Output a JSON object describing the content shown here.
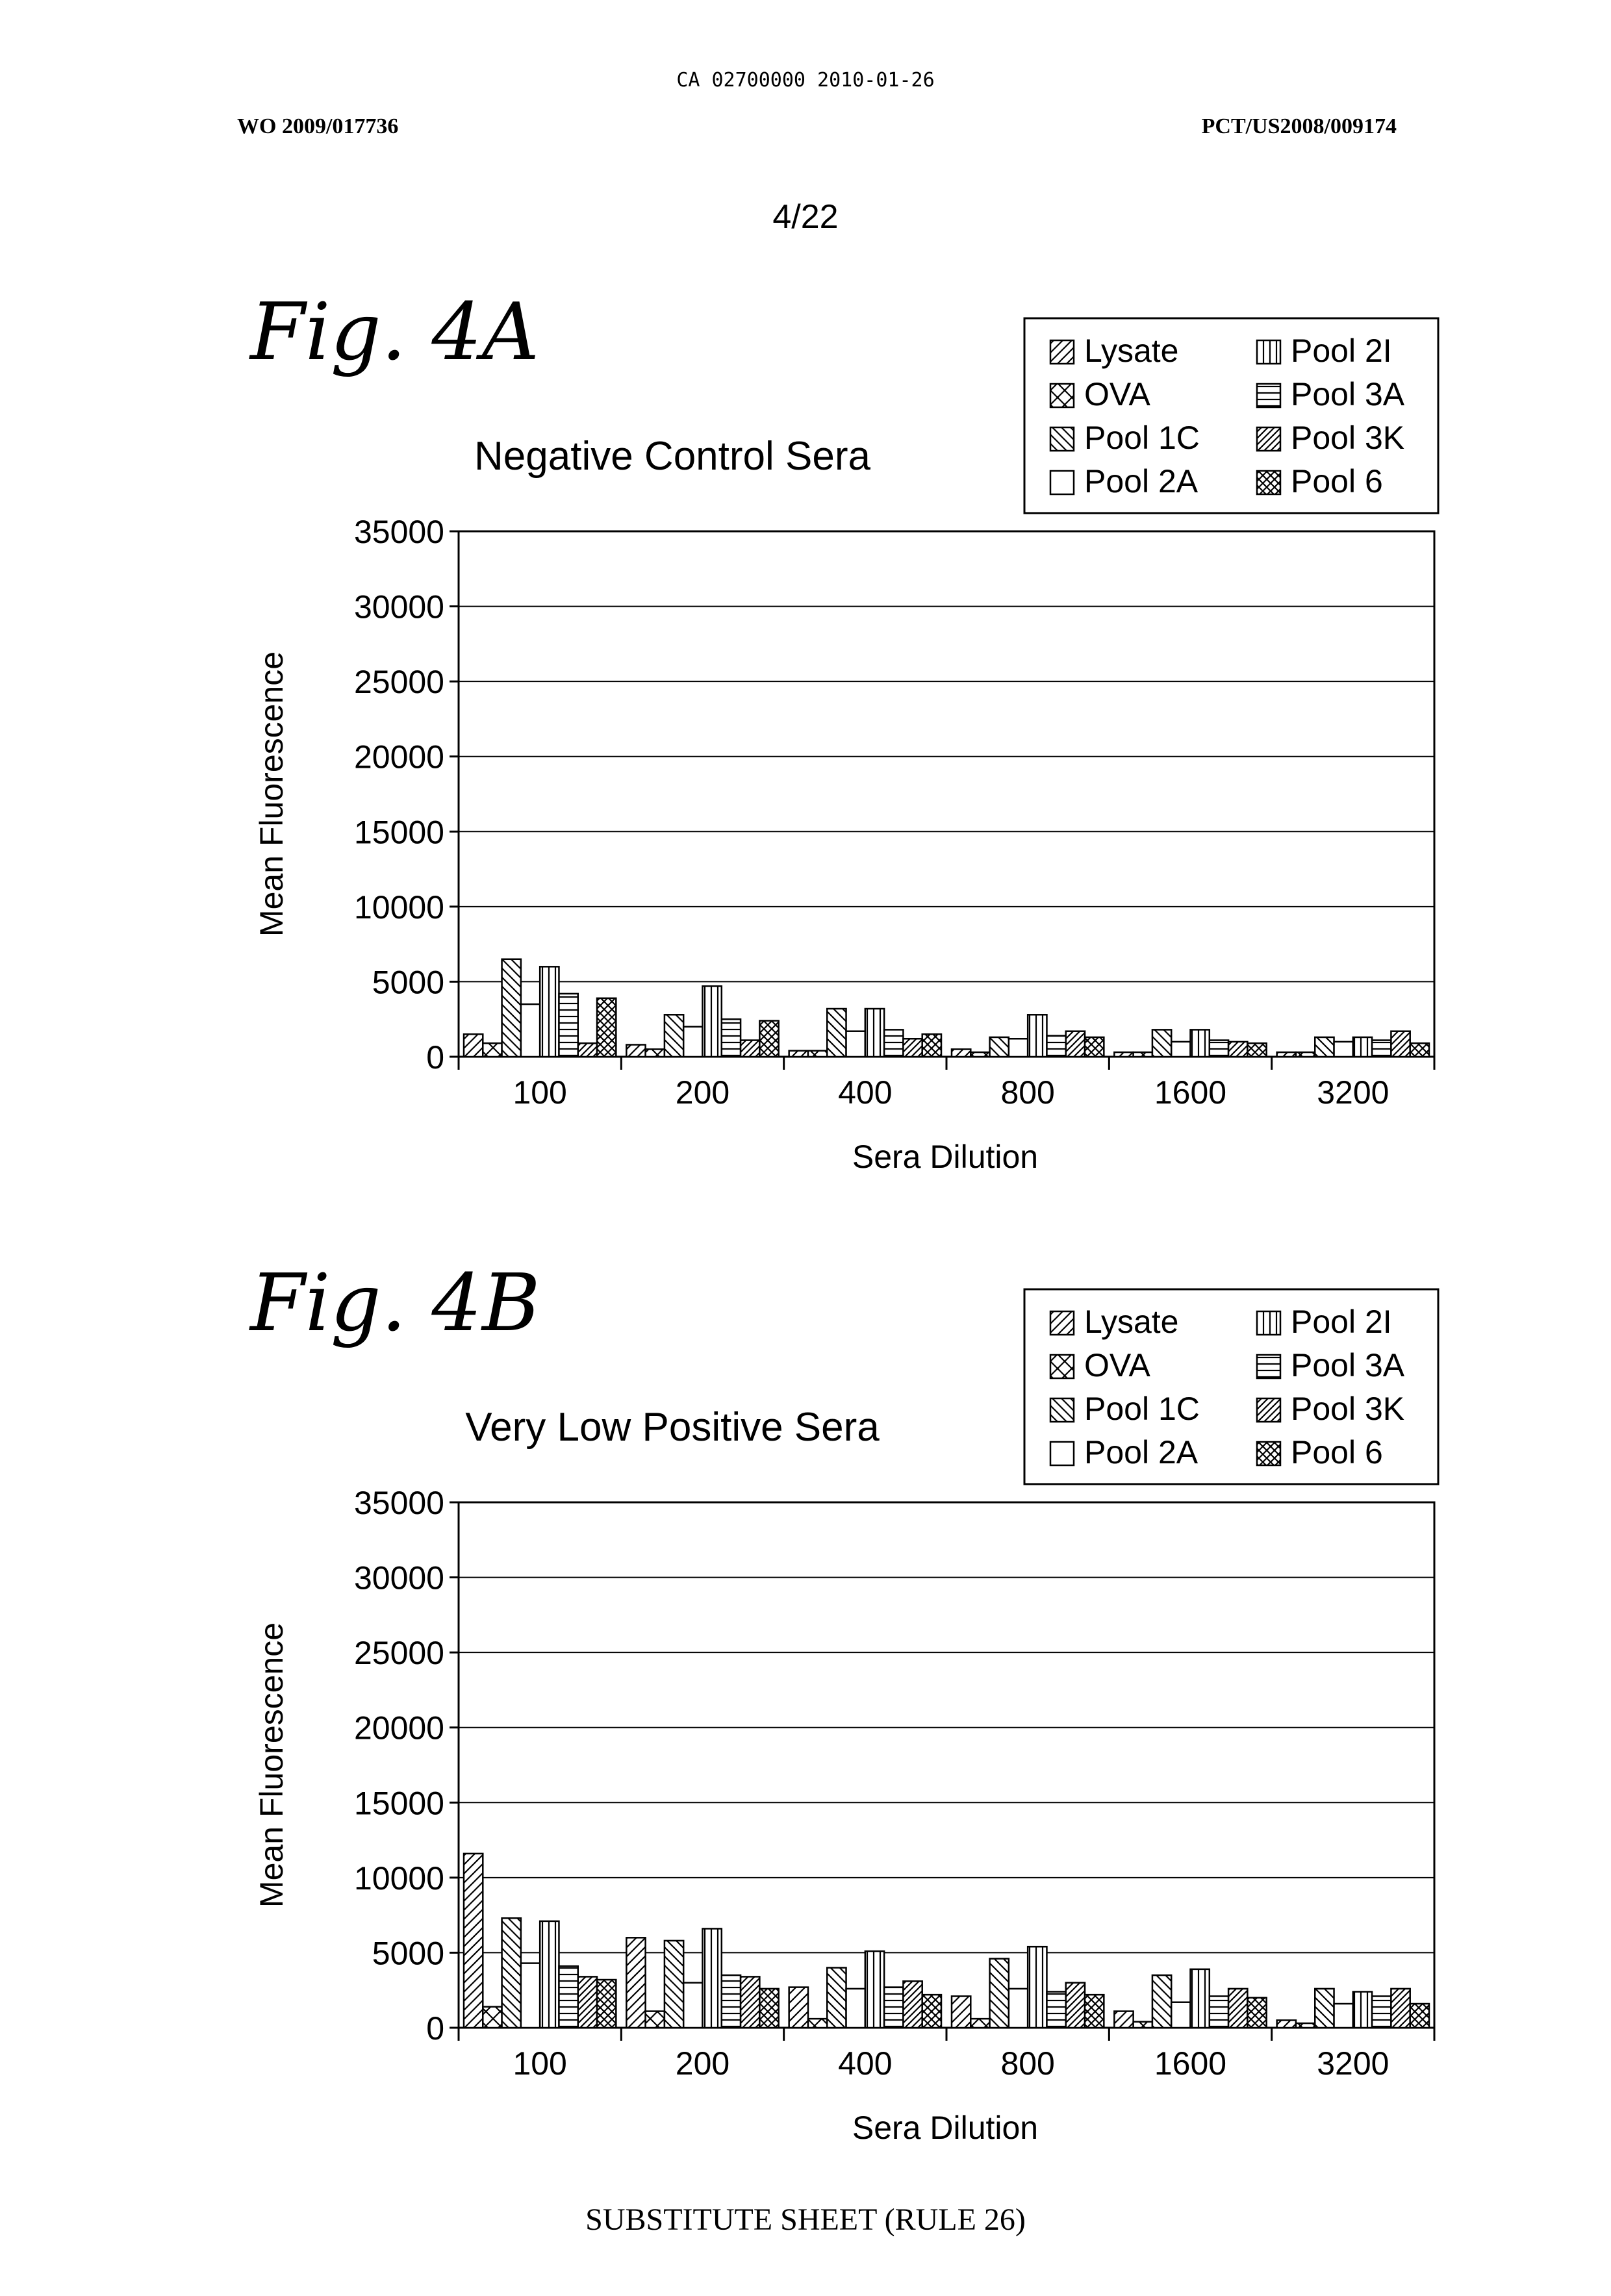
{
  "header": {
    "top_line": "CA 02700000 2010-01-26",
    "left": "WO 2009/017736",
    "right": "PCT/US2008/009174",
    "page_number": "4/22"
  },
  "footer": "SUBSTITUTE SHEET (RULE 26)",
  "figures": [
    {
      "label": "Fig. 4A"
    },
    {
      "label": "Fig. 4B"
    }
  ],
  "series_patterns": [
    "diag-up",
    "cross-box",
    "diag-down",
    "blank",
    "vertical",
    "horizontal",
    "diag-up-dense",
    "crosshatch"
  ],
  "chart_data": [
    {
      "type": "bar",
      "title": "Negative Control Sera",
      "xlabel": "Sera Dilution",
      "ylabel": "Mean Fluorescence",
      "ylim": [
        0,
        35000
      ],
      "yticks": [
        0,
        5000,
        10000,
        15000,
        20000,
        25000,
        30000,
        35000
      ],
      "grid": true,
      "legend_position": "top-right",
      "categories": [
        "100",
        "200",
        "400",
        "800",
        "1600",
        "3200"
      ],
      "series": [
        {
          "name": "Lysate",
          "values": [
            1500,
            800,
            400,
            500,
            300,
            300
          ]
        },
        {
          "name": "OVA",
          "values": [
            900,
            500,
            400,
            300,
            300,
            300
          ]
        },
        {
          "name": "Pool 1C",
          "values": [
            6500,
            2800,
            3200,
            1300,
            1800,
            1300
          ]
        },
        {
          "name": "Pool 2A",
          "values": [
            3500,
            2000,
            1700,
            1200,
            1000,
            1000
          ]
        },
        {
          "name": "Pool 2I",
          "values": [
            6000,
            4700,
            3200,
            2800,
            1800,
            1300
          ]
        },
        {
          "name": "Pool 3A",
          "values": [
            4200,
            2500,
            1800,
            1400,
            1100,
            1100
          ]
        },
        {
          "name": "Pool 3K",
          "values": [
            900,
            1100,
            1200,
            1700,
            1000,
            1700
          ]
        },
        {
          "name": "Pool 6",
          "values": [
            3900,
            2400,
            1500,
            1300,
            900,
            900
          ]
        }
      ]
    },
    {
      "type": "bar",
      "title": "Very Low Positive Sera",
      "xlabel": "Sera Dilution",
      "ylabel": "Mean Fluorescence",
      "ylim": [
        0,
        35000
      ],
      "yticks": [
        0,
        5000,
        10000,
        15000,
        20000,
        25000,
        30000,
        35000
      ],
      "grid": true,
      "legend_position": "top-right",
      "categories": [
        "100",
        "200",
        "400",
        "800",
        "1600",
        "3200"
      ],
      "series": [
        {
          "name": "Lysate",
          "values": [
            11600,
            6000,
            2700,
            2100,
            1100,
            500
          ]
        },
        {
          "name": "OVA",
          "values": [
            1400,
            1100,
            600,
            600,
            400,
            300
          ]
        },
        {
          "name": "Pool 1C",
          "values": [
            7300,
            5800,
            4000,
            4600,
            3500,
            2600
          ]
        },
        {
          "name": "Pool 2A",
          "values": [
            4300,
            3000,
            2600,
            2600,
            1700,
            1600
          ]
        },
        {
          "name": "Pool 2I",
          "values": [
            7100,
            6600,
            5100,
            5400,
            3900,
            2400
          ]
        },
        {
          "name": "Pool 3A",
          "values": [
            4100,
            3500,
            2700,
            2400,
            2100,
            2100
          ]
        },
        {
          "name": "Pool 3K",
          "values": [
            3400,
            3400,
            3100,
            3000,
            2600,
            2600
          ]
        },
        {
          "name": "Pool 6",
          "values": [
            3200,
            2600,
            2200,
            2200,
            2000,
            1600
          ]
        }
      ]
    }
  ]
}
